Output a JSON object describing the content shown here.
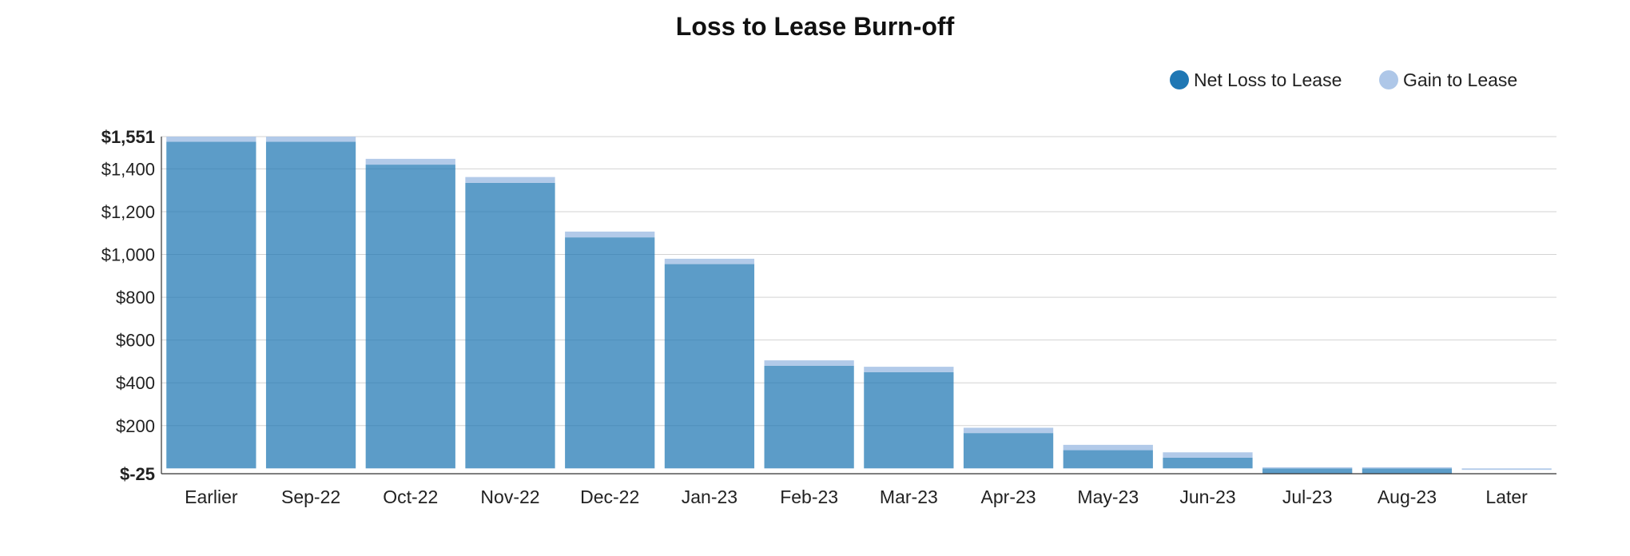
{
  "chart_data": {
    "type": "bar",
    "stacked": true,
    "title": "Loss to Lease Burn-off",
    "xlabel": "",
    "ylabel": "",
    "categories": [
      "Earlier",
      "Sep-22",
      "Oct-22",
      "Nov-22",
      "Dec-22",
      "Jan-23",
      "Feb-23",
      "Mar-23",
      "Apr-23",
      "May-23",
      "Jun-23",
      "Jul-23",
      "Aug-23",
      "Later"
    ],
    "series": [
      {
        "name": "Net Loss to Lease",
        "color": "#1f77b4",
        "values": [
          1527,
          1527,
          1420,
          1335,
          1080,
          955,
          480,
          450,
          165,
          85,
          50,
          -25,
          -25,
          0
        ]
      },
      {
        "name": "Gain to Lease",
        "color": "#aec7e8",
        "values": [
          24,
          24,
          27,
          27,
          27,
          25,
          25,
          25,
          25,
          25,
          25,
          5,
          5,
          -7
        ]
      }
    ],
    "ylim": [
      -25,
      1551
    ],
    "yticks": [
      {
        "value": -25,
        "label": "$-25",
        "bold": true
      },
      {
        "value": 200,
        "label": "$200"
      },
      {
        "value": 400,
        "label": "$400"
      },
      {
        "value": 600,
        "label": "$600"
      },
      {
        "value": 800,
        "label": "$800"
      },
      {
        "value": 1000,
        "label": "$1,000"
      },
      {
        "value": 1200,
        "label": "$1,200"
      },
      {
        "value": 1400,
        "label": "$1,400"
      },
      {
        "value": 1551,
        "label": "$1,551",
        "bold": true
      }
    ],
    "grid": true,
    "legend_position": "top-right"
  }
}
